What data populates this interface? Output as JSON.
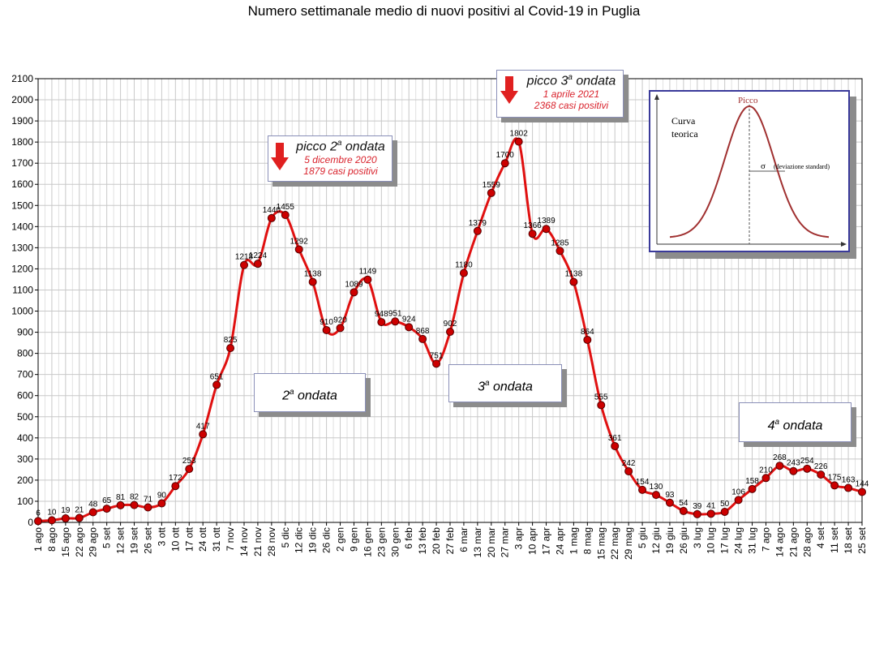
{
  "chart_data": {
    "type": "line",
    "title": "Numero settimanale medio di nuovi positivi al Covid-19 in Puglia",
    "ylim": [
      0,
      2100
    ],
    "yticks": [
      0,
      100,
      200,
      300,
      400,
      500,
      600,
      700,
      800,
      900,
      1000,
      1100,
      1200,
      1300,
      1400,
      1500,
      1600,
      1700,
      1800,
      1900,
      2000,
      2100
    ],
    "grid": true,
    "x_tick_labels": [
      "1 ago",
      "8 ago",
      "15 ago",
      "22 ago",
      "29 ago",
      "5 set",
      "12 set",
      "19 set",
      "26 set",
      "3 ott",
      "10 ott",
      "17 ott",
      "24 ott",
      "31 ott",
      "7 nov",
      "14 nov",
      "21 nov",
      "28 nov",
      "5 dic",
      "12 dic",
      "19 dic",
      "26 dic",
      "2 gen",
      "9 gen",
      "16 gen",
      "23 gen",
      "30 gen",
      "6 feb",
      "13 feb",
      "20 feb",
      "27 feb",
      "6 mar",
      "13 mar",
      "20 mar",
      "27 mar",
      "3 apr",
      "10 apr",
      "17 apr",
      "24 apr",
      "1 mag",
      "8 mag",
      "15 mag",
      "22 mag",
      "29 mag",
      "5 giu",
      "12 giu",
      "19 giu",
      "26 giu",
      "3 lug",
      "10 lug",
      "17 lug",
      "24 lug",
      "31 lug",
      "7 ago",
      "14 ago",
      "21 ago",
      "28 ago",
      "4 set",
      "11 set",
      "18 set",
      "25 set"
    ],
    "series": [
      {
        "values": [
          6,
          10,
          19,
          21,
          48,
          65,
          81,
          82,
          71,
          90,
          172,
          253,
          417,
          651,
          825,
          1218,
          1224,
          1440,
          1455,
          1292,
          1138,
          910,
          920,
          1089,
          1149,
          948,
          951,
          924,
          868,
          751,
          902,
          1180,
          1379,
          1559,
          1700,
          1802,
          1366,
          1389,
          1285,
          1138,
          864,
          555,
          361,
          242,
          154,
          130,
          93,
          54,
          39,
          41,
          50,
          106,
          158,
          210,
          268,
          243,
          254,
          226,
          175,
          163,
          144
        ],
        "labels": [
          "6",
          "10",
          "19",
          "21",
          "48",
          "65",
          "81",
          "82",
          "71",
          "90",
          "172",
          "253",
          "417",
          "651",
          "825",
          "1218",
          "1224",
          "1440",
          "1455",
          "1292",
          "1138",
          "910",
          "920",
          "1089",
          "1149",
          "948",
          "951",
          "924",
          "868",
          "751",
          "902",
          "1180",
          "1379",
          "1559",
          "1700",
          "1802",
          "1366",
          "1389",
          "1285",
          "1138",
          "864",
          "555",
          "361",
          "242",
          "154",
          "130",
          "93",
          "54",
          "39",
          "41",
          "50",
          "106",
          "158",
          "210",
          "268",
          "243",
          "254",
          "226",
          "175",
          "163",
          "144"
        ]
      }
    ],
    "series_color": "#e01010",
    "marker_color": "#cc0000",
    "grid_color": "#c8c8c8"
  },
  "annotations": {
    "wave2": {
      "text": "ondata",
      "num": "2",
      "sup": "a"
    },
    "wave3": {
      "text": "ondata",
      "num": "3",
      "sup": "a"
    },
    "wave4": {
      "text": "ondata",
      "num": "4",
      "sup": "a"
    },
    "peak2": {
      "title_pre": "picco 2",
      "sup": "a",
      "title_post": " ondata",
      "date": "5 dicembre 2020",
      "cases": "1879 casi positivi"
    },
    "peak3": {
      "title_pre": "picco 3",
      "sup": "a",
      "title_post": " ondata",
      "date": "1 aprile 2021",
      "cases": "2368 casi positivi"
    }
  },
  "inset": {
    "peak_label": "Picco",
    "curve_label_1": "Curva",
    "curve_label_2": "teorica",
    "sigma_symbol": "σ",
    "sigma_label": "(deviazione standard)",
    "curve_color": "#a03030"
  }
}
